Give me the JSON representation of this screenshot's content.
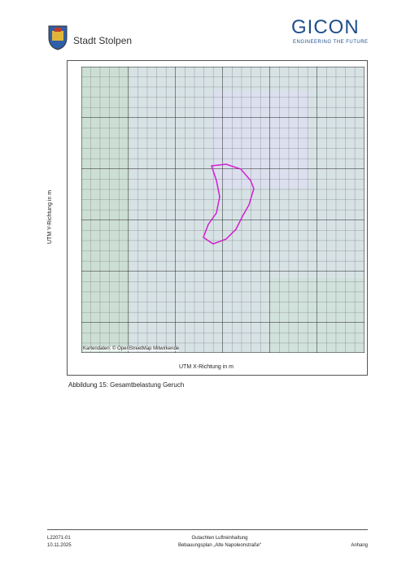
{
  "header": {
    "title": "Stadt Stolpen",
    "logo": "GICON",
    "logo_tagline": "ENGINEERING THE FUTURE"
  },
  "figure": {
    "y_axis_label": "UTM Y-Richtung in m",
    "x_axis_label": "UTM X-Richtung in m",
    "attribution": "Kartendaten: © OpenStreetMap Mitwirkende",
    "caption": "Abbildung 15: Gesamtbelastung Geruch"
  },
  "footer": {
    "project_number": "L22071-01",
    "date": "10.11.2025",
    "title": "Gutachten Luftreinhaltung",
    "subtitle": "Bebauungsplan „Alte Napoleonstraße“",
    "section": "Anhang"
  }
}
